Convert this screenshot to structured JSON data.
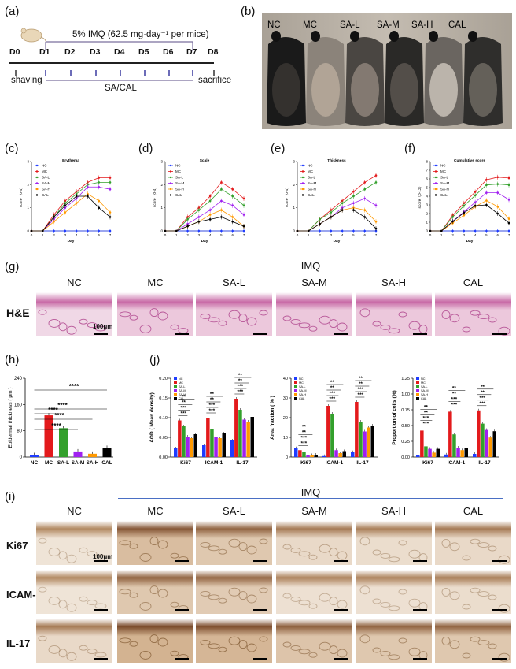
{
  "panels": {
    "a": "(a)",
    "b": "(b)",
    "c": "(c)",
    "d": "(d)",
    "e": "(e)",
    "f": "(f)",
    "g": "(g)",
    "h": "(h)",
    "i": "(i)",
    "j": "(j)"
  },
  "timeline": {
    "imq_label": "5% IMQ (62.5 mg·day⁻¹ per mice)",
    "days": [
      "D0",
      "D1",
      "D2",
      "D3",
      "D4",
      "D5",
      "D6",
      "D7",
      "D8"
    ],
    "shaving": "shaving",
    "treatment": "SA/CAL",
    "sacrifice": "sacrifice"
  },
  "groups": [
    "NC",
    "MC",
    "SA-L",
    "SA-M",
    "SA-H",
    "CAL"
  ],
  "imq_header": "IMQ",
  "he_label": "H&E",
  "scale_text": "100μm",
  "ihc_rows": [
    "Ki67",
    "ICAM-1",
    "IL-17"
  ],
  "colors": {
    "NC": "#1f3cff",
    "MC": "#e31a1c",
    "SA-L": "#33a02c",
    "SA-M": "#a020f0",
    "SA-H": "#ff9900",
    "CAL": "#000000"
  },
  "chart_data": [
    {
      "type": "line",
      "id": "c",
      "title": "Erythema",
      "xlabel": "Day",
      "ylabel": "score（0-4）",
      "x": [
        0,
        1,
        2,
        3,
        4,
        5,
        6,
        7
      ],
      "ylim": [
        0,
        3
      ],
      "series": [
        {
          "name": "NC",
          "values": [
            0,
            0,
            0,
            0,
            0,
            0,
            0,
            0
          ]
        },
        {
          "name": "MC",
          "values": [
            0,
            0,
            0.7,
            1.3,
            1.7,
            2.1,
            2.3,
            2.3
          ]
        },
        {
          "name": "SA-L",
          "values": [
            0,
            0,
            0.6,
            1.2,
            1.6,
            2.0,
            2.1,
            2.1
          ]
        },
        {
          "name": "SA-M",
          "values": [
            0,
            0,
            0.5,
            1.0,
            1.4,
            1.9,
            1.9,
            1.8
          ]
        },
        {
          "name": "SA-H",
          "values": [
            0,
            0,
            0.4,
            0.8,
            1.2,
            1.6,
            1.3,
            0.8
          ]
        },
        {
          "name": "CAL",
          "values": [
            0,
            0,
            0.6,
            1.1,
            1.5,
            1.5,
            1.0,
            0.6
          ]
        }
      ]
    },
    {
      "type": "line",
      "id": "d",
      "title": "Scale",
      "xlabel": "Day",
      "ylabel": "score（0-4）",
      "x": [
        0,
        1,
        2,
        3,
        4,
        5,
        6,
        7
      ],
      "ylim": [
        0,
        3
      ],
      "series": [
        {
          "name": "NC",
          "values": [
            0,
            0,
            0,
            0,
            0,
            0,
            0,
            0
          ]
        },
        {
          "name": "MC",
          "values": [
            0,
            0,
            0.6,
            1.0,
            1.5,
            2.1,
            1.8,
            1.4
          ]
        },
        {
          "name": "SA-L",
          "values": [
            0,
            0,
            0.5,
            0.9,
            1.3,
            1.8,
            1.5,
            1.1
          ]
        },
        {
          "name": "SA-M",
          "values": [
            0,
            0,
            0.3,
            0.6,
            0.9,
            1.3,
            1.1,
            0.7
          ]
        },
        {
          "name": "SA-H",
          "values": [
            0,
            0,
            0.2,
            0.4,
            0.7,
            0.9,
            0.6,
            0.2
          ]
        },
        {
          "name": "CAL",
          "values": [
            0,
            0,
            0.2,
            0.4,
            0.5,
            0.6,
            0.4,
            0.2
          ]
        }
      ]
    },
    {
      "type": "line",
      "id": "e",
      "title": "Thickness",
      "xlabel": "Day",
      "ylabel": "score（0-4）",
      "x": [
        0,
        1,
        2,
        3,
        4,
        5,
        6,
        7
      ],
      "ylim": [
        0,
        3
      ],
      "series": [
        {
          "name": "NC",
          "values": [
            0,
            0,
            0,
            0,
            0,
            0,
            0,
            0
          ]
        },
        {
          "name": "MC",
          "values": [
            0,
            0,
            0.5,
            0.9,
            1.3,
            1.7,
            2.1,
            2.4
          ]
        },
        {
          "name": "SA-L",
          "values": [
            0,
            0,
            0.5,
            0.8,
            1.2,
            1.5,
            1.8,
            2.1
          ]
        },
        {
          "name": "SA-M",
          "values": [
            0,
            0,
            0.3,
            0.6,
            1.0,
            1.2,
            1.4,
            1.1
          ]
        },
        {
          "name": "SA-H",
          "values": [
            0,
            0,
            0.3,
            0.6,
            0.9,
            1.0,
            0.9,
            0.4
          ]
        },
        {
          "name": "CAL",
          "values": [
            0,
            0,
            0.3,
            0.6,
            0.9,
            0.9,
            0.6,
            0.1
          ]
        }
      ]
    },
    {
      "type": "line",
      "id": "f",
      "title": "Cumulative score",
      "xlabel": "Day",
      "ylabel": "score（0-12）",
      "x": [
        0,
        1,
        2,
        3,
        4,
        5,
        6,
        7
      ],
      "ylim": [
        0,
        8
      ],
      "series": [
        {
          "name": "NC",
          "values": [
            0,
            0,
            0,
            0,
            0,
            0,
            0,
            0
          ]
        },
        {
          "name": "MC",
          "values": [
            0,
            0,
            1.8,
            3.2,
            4.5,
            5.9,
            6.2,
            6.1
          ]
        },
        {
          "name": "SA-L",
          "values": [
            0,
            0,
            1.6,
            2.9,
            4.1,
            5.3,
            5.4,
            5.3
          ]
        },
        {
          "name": "SA-M",
          "values": [
            0,
            0,
            1.1,
            2.2,
            3.3,
            4.4,
            4.4,
            3.6
          ]
        },
        {
          "name": "SA-H",
          "values": [
            0,
            0,
            0.9,
            1.8,
            2.8,
            3.5,
            2.8,
            1.4
          ]
        },
        {
          "name": "CAL",
          "values": [
            0,
            0,
            1.1,
            2.1,
            2.9,
            3.0,
            2.0,
            0.9
          ]
        }
      ]
    },
    {
      "type": "bar",
      "id": "h",
      "ylabel": "Epidermal thickness ( μm )",
      "categories": [
        "NC",
        "MC",
        "SA-L",
        "SA-M",
        "SA-H",
        "CAL"
      ],
      "values": [
        6,
        127,
        88,
        17,
        10,
        28
      ],
      "ylim": [
        0,
        240
      ],
      "yticks": [
        0,
        80,
        160,
        240
      ],
      "sig": [
        "****",
        "****",
        "****",
        "****",
        "****"
      ]
    },
    {
      "type": "bar",
      "id": "j1",
      "ylabel": "AOD ( Mean density)",
      "categories": [
        "Ki67",
        "ICAM-1",
        "IL-17"
      ],
      "ylim": [
        0,
        0.2
      ],
      "yticks": [
        0.0,
        0.05,
        0.1,
        0.15,
        0.2
      ],
      "series": [
        {
          "name": "NC",
          "values": [
            0.022,
            0.03,
            0.042
          ]
        },
        {
          "name": "MC",
          "values": [
            0.093,
            0.1,
            0.148
          ]
        },
        {
          "name": "SA-L",
          "values": [
            0.078,
            0.07,
            0.12
          ]
        },
        {
          "name": "SA-M",
          "values": [
            0.052,
            0.05,
            0.095
          ]
        },
        {
          "name": "SA-H",
          "values": [
            0.048,
            0.048,
            0.09
          ]
        },
        {
          "name": "CAL",
          "values": [
            0.058,
            0.06,
            0.102
          ]
        }
      ]
    },
    {
      "type": "bar",
      "id": "j2",
      "ylabel": "Area fraction ( % )",
      "categories": [
        "Ki67",
        "ICAM-1",
        "IL-17"
      ],
      "ylim": [
        0,
        40
      ],
      "yticks": [
        0,
        10,
        20,
        30,
        40
      ],
      "series": [
        {
          "name": "NC",
          "values": [
            4.5,
            0.5,
            2.5
          ]
        },
        {
          "name": "MC",
          "values": [
            3.5,
            26,
            28
          ]
        },
        {
          "name": "SA-L",
          "values": [
            2.5,
            22,
            18
          ]
        },
        {
          "name": "SA-M",
          "values": [
            1.2,
            3.5,
            13
          ]
        },
        {
          "name": "SA-H",
          "values": [
            1.0,
            2.0,
            15
          ]
        },
        {
          "name": "CAL",
          "values": [
            1.2,
            3.0,
            16
          ]
        }
      ]
    },
    {
      "type": "bar",
      "id": "j3",
      "ylabel": "Proportion of cells (%)",
      "categories": [
        "Ki67",
        "ICAM-1",
        "IL-17"
      ],
      "ylim": [
        0,
        1.25
      ],
      "yticks": [
        0.0,
        0.25,
        0.5,
        0.75,
        1.0,
        1.25
      ],
      "series": [
        {
          "name": "NC",
          "values": [
            0.03,
            0.04,
            0.05
          ]
        },
        {
          "name": "MC",
          "values": [
            0.42,
            0.72,
            0.74
          ]
        },
        {
          "name": "SA-L",
          "values": [
            0.17,
            0.36,
            0.53
          ]
        },
        {
          "name": "SA-M",
          "values": [
            0.13,
            0.15,
            0.43
          ]
        },
        {
          "name": "SA-H",
          "values": [
            0.07,
            0.11,
            0.31
          ]
        },
        {
          "name": "CAL",
          "values": [
            0.13,
            0.15,
            0.41
          ]
        }
      ]
    }
  ]
}
